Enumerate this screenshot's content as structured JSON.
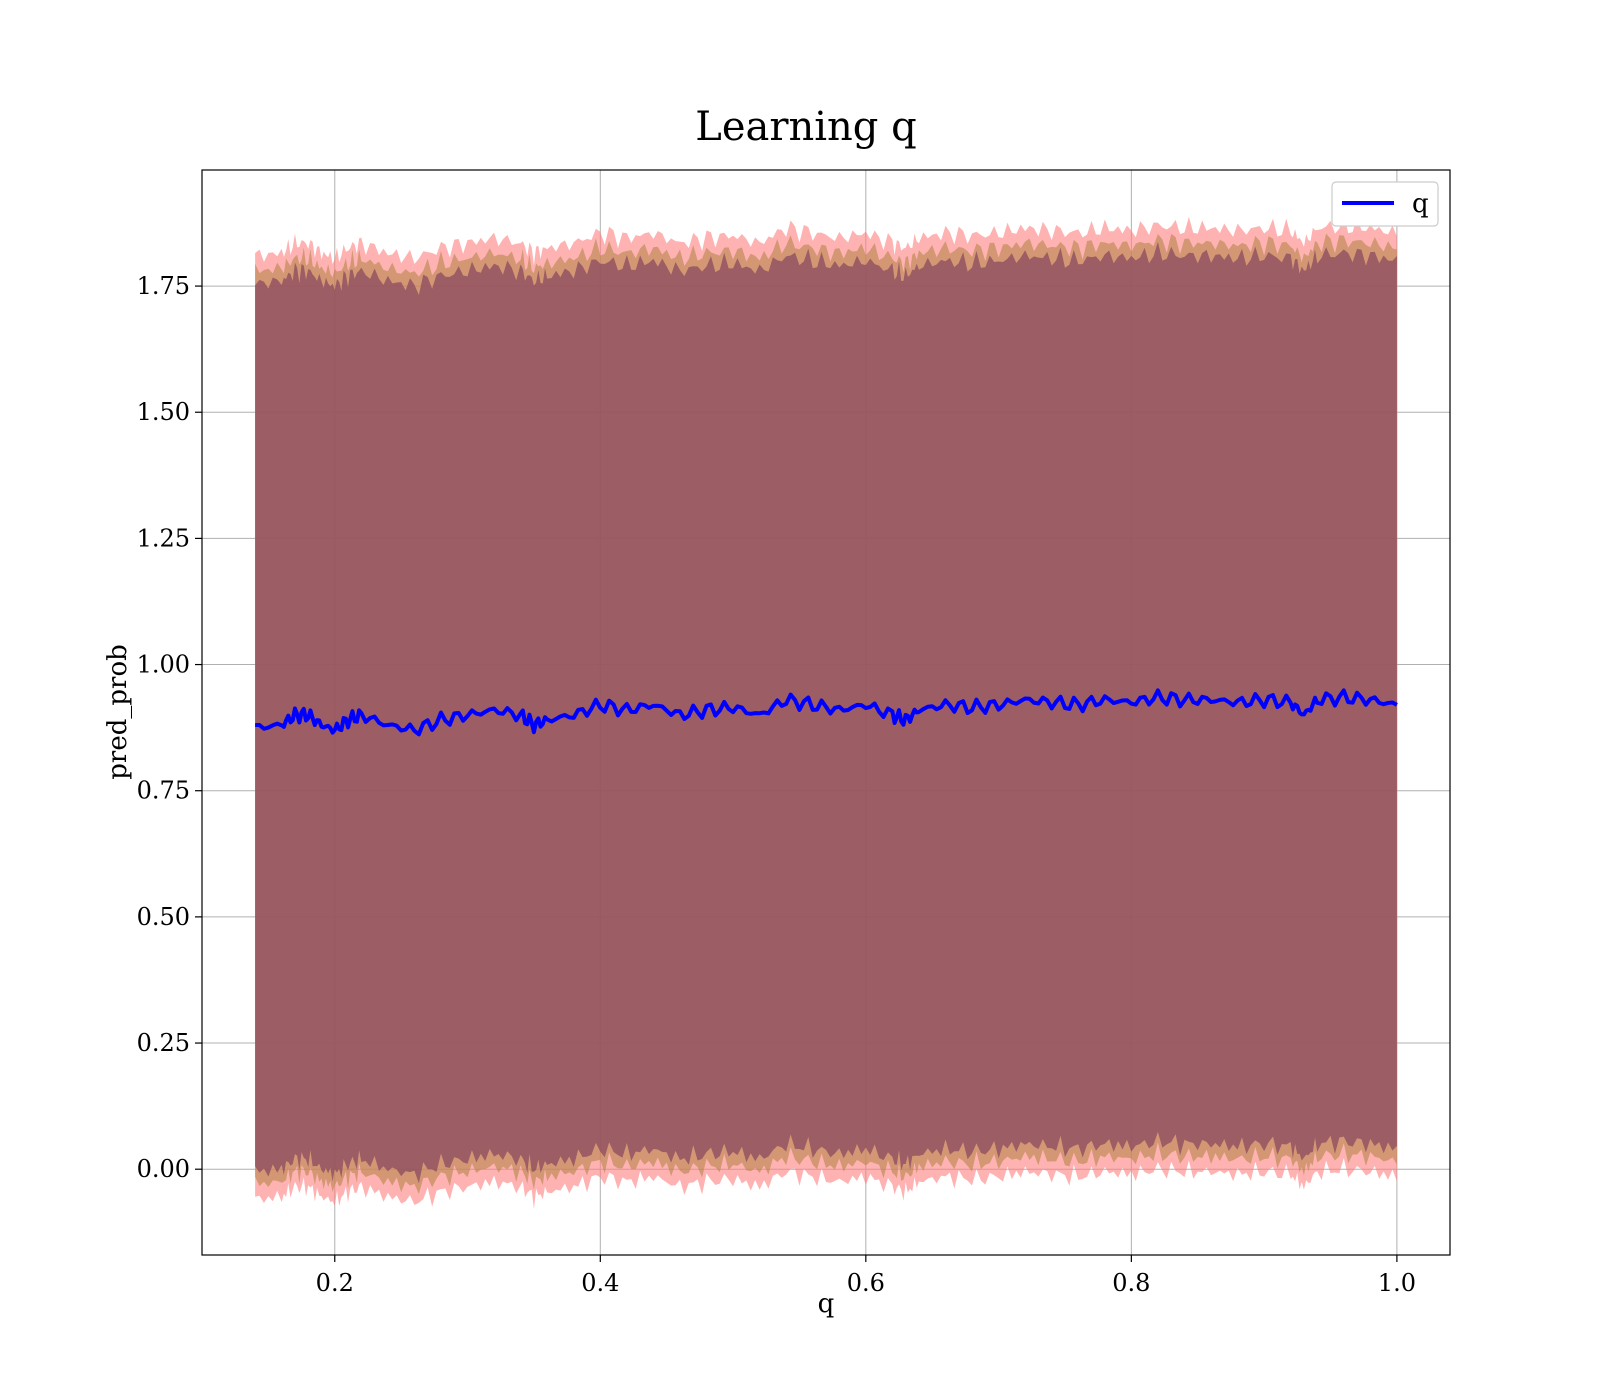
{
  "chart_data": {
    "type": "line",
    "title": "Learning q",
    "xlabel": "q",
    "ylabel": "pred_prob",
    "xlim": [
      0.1,
      1.04
    ],
    "ylim": [
      -0.17,
      1.98
    ],
    "xticks": [
      {
        "value": 0.2,
        "label": "0.2"
      },
      {
        "value": 0.4,
        "label": "0.4"
      },
      {
        "value": 0.6,
        "label": "0.6"
      },
      {
        "value": 0.8,
        "label": "0.8"
      },
      {
        "value": 1.0,
        "label": "1.0"
      }
    ],
    "yticks": [
      {
        "value": 0.0,
        "label": "0.00"
      },
      {
        "value": 0.25,
        "label": "0.25"
      },
      {
        "value": 0.5,
        "label": "0.50"
      },
      {
        "value": 0.75,
        "label": "0.75"
      },
      {
        "value": 1.0,
        "label": "1.00"
      },
      {
        "value": 1.25,
        "label": "1.25"
      },
      {
        "value": 1.5,
        "label": "1.50"
      },
      {
        "value": 1.75,
        "label": "1.75"
      }
    ],
    "grid": true,
    "legend": {
      "position": "top-right",
      "entries": [
        {
          "label": "q",
          "color": "#0000ff"
        }
      ]
    },
    "series": [
      {
        "name": "q",
        "color": "#0000ff",
        "x": [
          0.14,
          0.16,
          0.17,
          0.18,
          0.19,
          0.2,
          0.21,
          0.22,
          0.24,
          0.26,
          0.28,
          0.3,
          0.32,
          0.34,
          0.35,
          0.36,
          0.38,
          0.4,
          0.42,
          0.44,
          0.46,
          0.48,
          0.5,
          0.52,
          0.54,
          0.56,
          0.58,
          0.6,
          0.62,
          0.63,
          0.64,
          0.66,
          0.68,
          0.7,
          0.72,
          0.74,
          0.76,
          0.78,
          0.8,
          0.82,
          0.84,
          0.86,
          0.88,
          0.9,
          0.92,
          0.93,
          0.94,
          0.96,
          0.98,
          1.0
        ],
        "y": [
          0.875,
          0.88,
          0.9,
          0.9,
          0.88,
          0.87,
          0.89,
          0.9,
          0.88,
          0.87,
          0.89,
          0.9,
          0.91,
          0.9,
          0.88,
          0.89,
          0.9,
          0.92,
          0.91,
          0.92,
          0.9,
          0.91,
          0.915,
          0.9,
          0.93,
          0.92,
          0.91,
          0.92,
          0.9,
          0.89,
          0.91,
          0.92,
          0.915,
          0.92,
          0.93,
          0.925,
          0.92,
          0.93,
          0.925,
          0.935,
          0.93,
          0.93,
          0.925,
          0.93,
          0.925,
          0.9,
          0.93,
          0.935,
          0.93,
          0.92
        ]
      }
    ],
    "bands": [
      {
        "color": "#ff7f7f",
        "opacity": 0.6,
        "lower_offset": -0.935,
        "upper_offset": 0.935
      },
      {
        "color": "#b8864b",
        "opacity": 0.6,
        "lower_offset": -0.905,
        "upper_offset": 0.905
      },
      {
        "color": "#8b4a5f",
        "opacity": 0.75,
        "lower_offset": -0.88,
        "upper_offset": 0.88
      }
    ]
  }
}
